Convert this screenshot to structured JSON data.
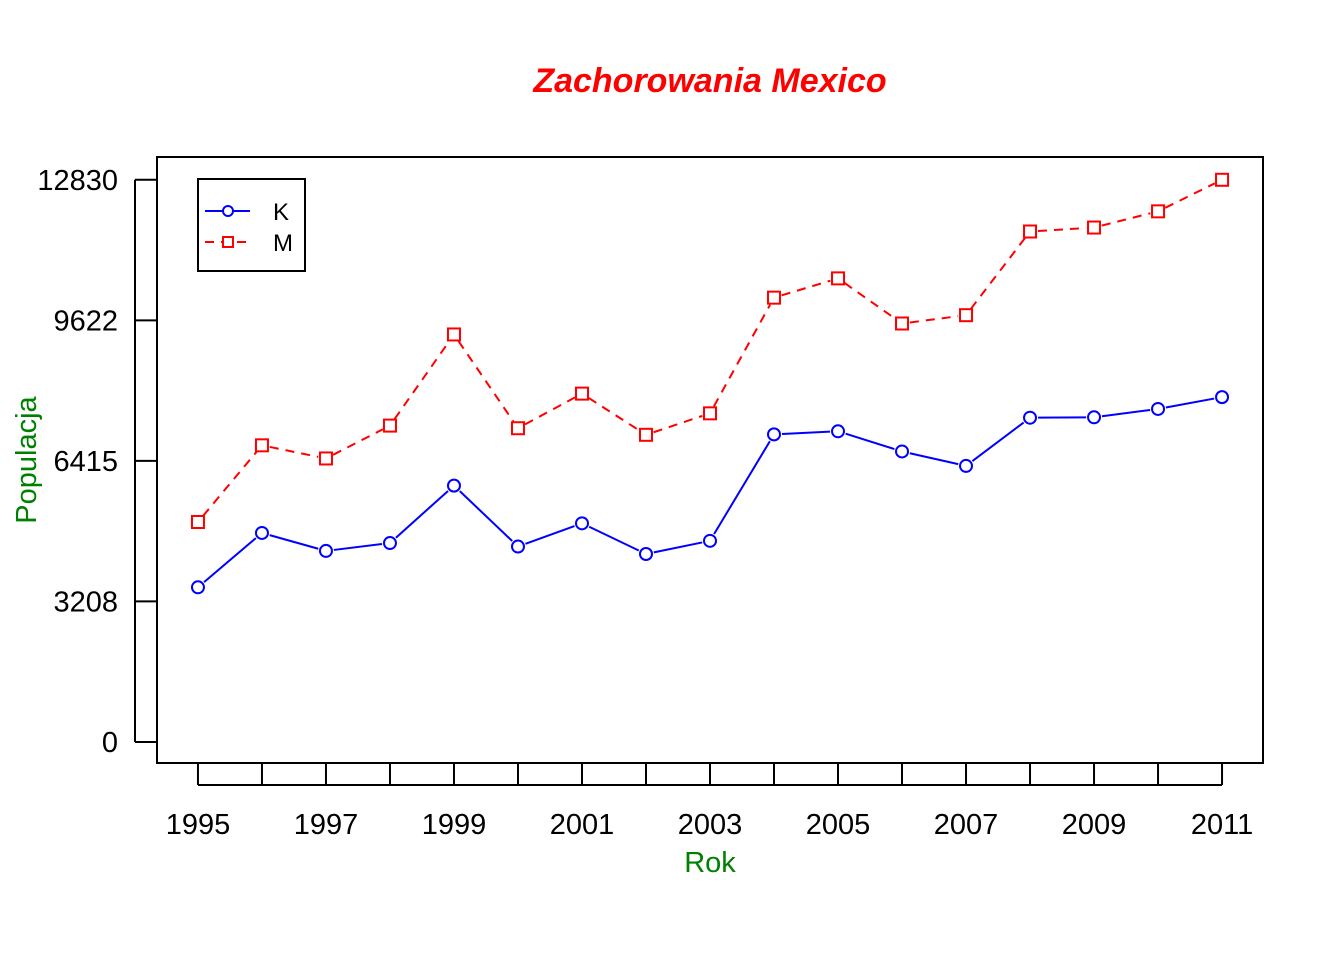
{
  "chart_data": {
    "type": "line",
    "title": "Zachorowania Mexico",
    "xlabel": "Rok",
    "ylabel": "Populacja",
    "x": [
      1995,
      1996,
      1997,
      1998,
      1999,
      2000,
      2001,
      2002,
      2003,
      2004,
      2005,
      2006,
      2007,
      2008,
      2009,
      2010,
      2011
    ],
    "x_tick_labels": [
      "1995",
      "1997",
      "1999",
      "2001",
      "2003",
      "2005",
      "2007",
      "2009",
      "2011"
    ],
    "y_tick_labels": [
      "0",
      "3208",
      "6415",
      "9622",
      "12830"
    ],
    "y_ticks": [
      0,
      3208,
      6415,
      9622,
      12830
    ],
    "ylim": [
      -480,
      13350
    ],
    "xlim": [
      1994.36,
      2011.64
    ],
    "grid": false,
    "legend_position": "top-left",
    "series": [
      {
        "name": "K",
        "color": "#0000ff",
        "line_style": "solid",
        "marker": "circle",
        "values": [
          3530,
          4770,
          4360,
          4540,
          5850,
          4460,
          4990,
          4290,
          4590,
          7020,
          7090,
          6630,
          6300,
          7400,
          7410,
          7600,
          7870
        ]
      },
      {
        "name": "M",
        "color": "#ff0000",
        "line_style": "dashed",
        "marker": "square",
        "values": [
          5020,
          6770,
          6470,
          7220,
          9300,
          7160,
          7950,
          7010,
          7500,
          10140,
          10580,
          9550,
          9740,
          11650,
          11740,
          12110,
          12830
        ]
      }
    ],
    "title_color": "#ff0000",
    "axis_title_color": "#008000"
  }
}
